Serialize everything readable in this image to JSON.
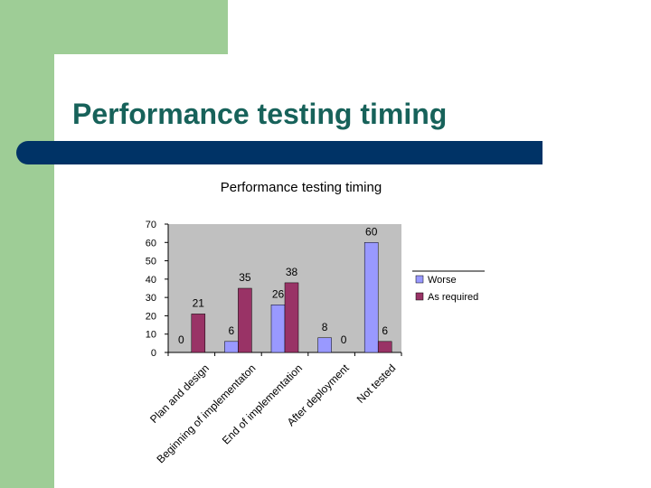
{
  "slide": {
    "title": "Performance testing timing"
  },
  "colors": {
    "green": "#9ecd96",
    "title_text": "#17625a",
    "bar": "#003366"
  },
  "chart_data": {
    "type": "bar",
    "title": "Performance testing timing",
    "xlabel": "",
    "ylabel": "",
    "ylim": [
      0,
      70
    ],
    "yticks": [
      0,
      10,
      20,
      30,
      40,
      50,
      60,
      70
    ],
    "grid": false,
    "legend_position": "right",
    "categories": [
      "Plan and design",
      "Beginning of implementation",
      "End of implementation",
      "After deployment",
      "Not tested"
    ],
    "category_lines": [
      [
        "Plan and design"
      ],
      [
        "Beginning of implementaton"
      ],
      [
        "End of implementation"
      ],
      [
        "After deployment"
      ],
      [
        "Not tested"
      ]
    ],
    "series": [
      {
        "name": "Worse",
        "color": "#9999ff",
        "values": [
          0,
          6,
          26,
          8,
          60
        ]
      },
      {
        "name": "As required",
        "color": "#993366",
        "values": [
          21,
          35,
          38,
          0,
          6
        ]
      }
    ]
  }
}
